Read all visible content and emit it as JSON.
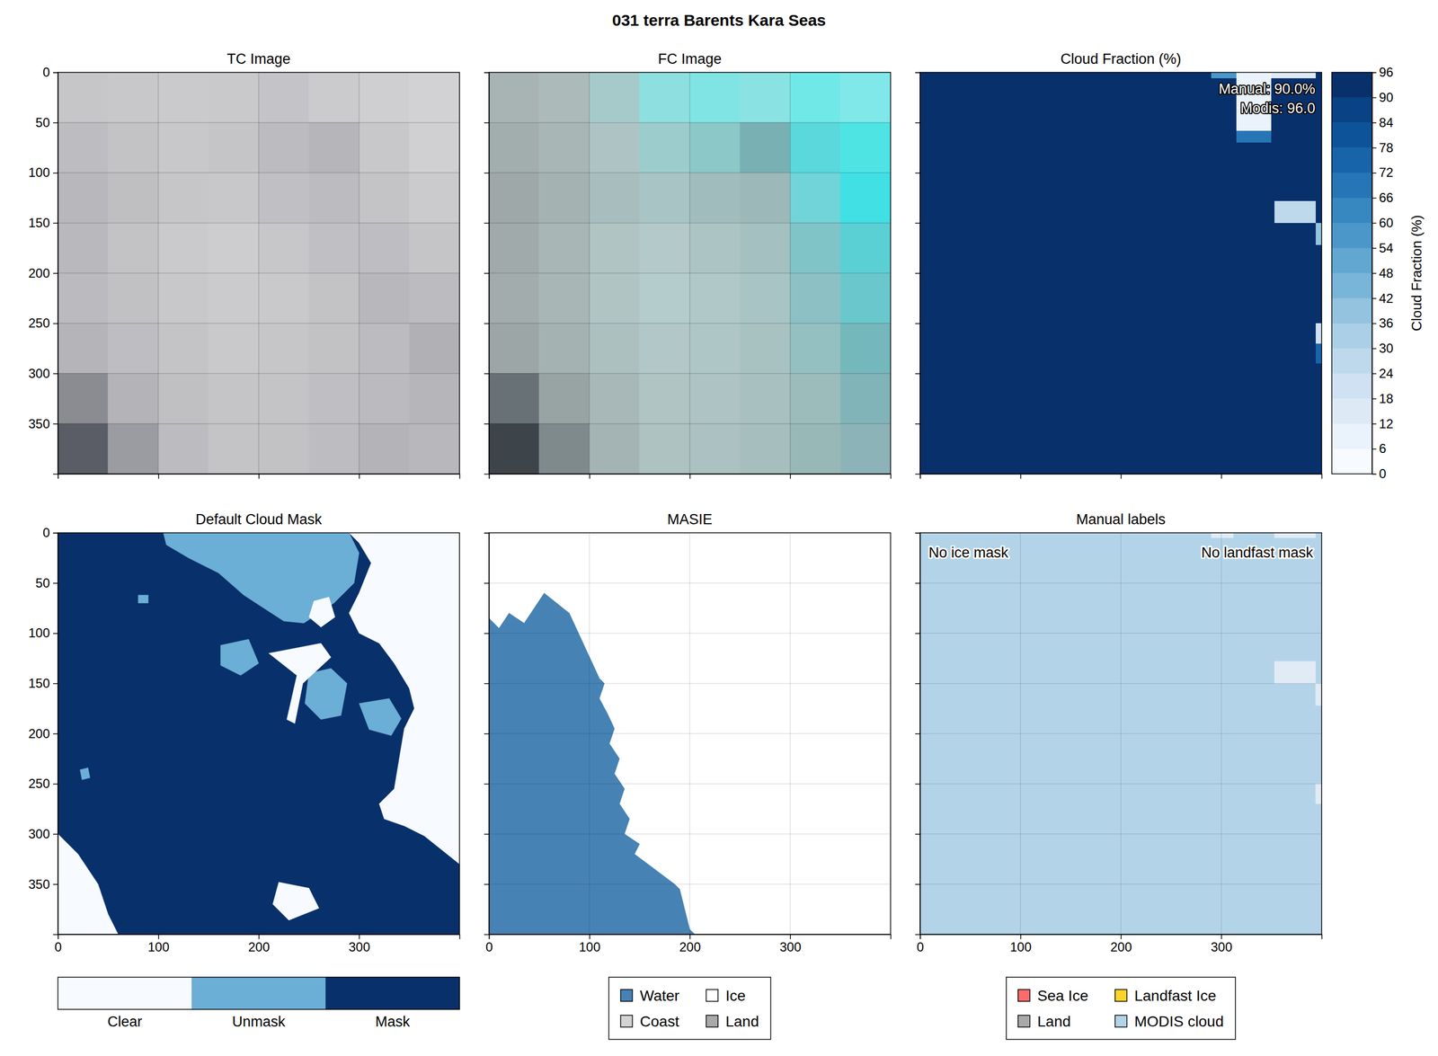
{
  "title": "031 terra Barents Kara Seas",
  "chart_data": [
    {
      "type": "image",
      "title": "TC Image",
      "xlim": [
        0,
        400
      ],
      "ylim": [
        400,
        0
      ],
      "xticks": [
        0,
        100,
        200,
        300
      ],
      "yticks": [
        0,
        50,
        100,
        150,
        200,
        250,
        300,
        350
      ],
      "grid": true,
      "tick_labels": "y",
      "cells": [
        [
          "#c6c6c8",
          "#c8c8ca",
          "#cacacc",
          "#c9c9cb",
          "#c4c4c8",
          "#cbcbcd",
          "#cfcfd1",
          "#d2d2d4"
        ],
        [
          "#bdbdc1",
          "#c3c3c6",
          "#c8c8ca",
          "#c5c5c8",
          "#bcbcc0",
          "#b6b6ba",
          "#c8c8cb",
          "#d0d0d2"
        ],
        [
          "#b8b8bc",
          "#bfbfc2",
          "#c6c6c9",
          "#c8c8ca",
          "#c0c0c4",
          "#bcbcc0",
          "#c4c4c7",
          "#cbcbce"
        ],
        [
          "#b9b9bd",
          "#c3c3c6",
          "#cacacc",
          "#cdcdcf",
          "#c7c7ca",
          "#c0c0c4",
          "#bebec2",
          "#c5c5c8"
        ],
        [
          "#bbbbbf",
          "#c1c1c4",
          "#c8c8cb",
          "#cbcbcd",
          "#c9c9cc",
          "#c3c3c6",
          "#b8b8bc",
          "#bcbcc0"
        ],
        [
          "#b5b5b9",
          "#bebec2",
          "#c4c4c7",
          "#c9c9cb",
          "#c6c6c9",
          "#c2c2c5",
          "#bcbcc0",
          "#b0b0b5"
        ],
        [
          "#8a8c92",
          "#b4b4b8",
          "#c0c0c3",
          "#c5c5c8",
          "#c4c4c7",
          "#bfbfc3",
          "#bbbbbf",
          "#b6b6ba"
        ],
        [
          "#5a5d65",
          "#9a9ca2",
          "#bcbcc0",
          "#c4c4c7",
          "#c2c2c5",
          "#bdbdc1",
          "#b4b4b8",
          "#b8b8bc"
        ]
      ]
    },
    {
      "type": "image",
      "title": "FC Image",
      "xlim": [
        0,
        400
      ],
      "ylim": [
        400,
        0
      ],
      "xticks": [
        0,
        100,
        200,
        300
      ],
      "yticks": [
        0,
        50,
        100,
        150,
        200,
        250,
        300,
        350
      ],
      "grid": true,
      "tick_labels": false,
      "cells": [
        [
          "#a8b4b4",
          "#acbaba",
          "#a6caca",
          "#8ee0e0",
          "#80e4e4",
          "#8ae2e2",
          "#70e8e8",
          "#80e8e8"
        ],
        [
          "#a2aeae",
          "#a8b6b6",
          "#aec4c4",
          "#9ccccc",
          "#8cc8c8",
          "#78b0b4",
          "#5ad8dc",
          "#4ee4e4"
        ],
        [
          "#9ea8a8",
          "#a4b2b2",
          "#a8bebe",
          "#a8c4c4",
          "#a0bcbc",
          "#9cb8b8",
          "#70d4d8",
          "#40e0e4"
        ],
        [
          "#a0aaaa",
          "#a8b6b6",
          "#b0c4c4",
          "#b4caca",
          "#acc4c4",
          "#a4c0c0",
          "#80c4c8",
          "#5ad0d4"
        ],
        [
          "#a2acac",
          "#a8b6b6",
          "#b0c4c4",
          "#b4cccc",
          "#b0c8c8",
          "#a8c4c4",
          "#8cc0c4",
          "#6ac8cc"
        ],
        [
          "#9ca6a6",
          "#a4b2b2",
          "#acc0c0",
          "#b2c8c8",
          "#aec6c6",
          "#a8c2c2",
          "#94c0c2",
          "#74b8bc"
        ],
        [
          "#687276",
          "#98a4a4",
          "#a8b8b8",
          "#b0c4c4",
          "#aec4c4",
          "#a8c0c0",
          "#9cbcbc",
          "#80b4b8"
        ],
        [
          "#3e454a",
          "#7e8a8c",
          "#a4b4b4",
          "#aec2c2",
          "#acc2c2",
          "#a6bebe",
          "#98b8b8",
          "#8cb4b8"
        ]
      ]
    },
    {
      "type": "heatmap",
      "title": "Cloud Fraction (%)",
      "xlim": [
        0,
        400
      ],
      "ylim": [
        400,
        0
      ],
      "xticks": [
        0,
        100,
        200,
        300
      ],
      "yticks": [
        0,
        50,
        100,
        150,
        200,
        250,
        300,
        350
      ],
      "grid": false,
      "tick_labels": false,
      "annotations": [
        "Manual: 90.0%",
        "Modis: 96.0"
      ],
      "cells": [
        {
          "x": [
            0,
            400
          ],
          "y": [
            0,
            400
          ],
          "value": 96
        },
        {
          "x": [
            290,
            315
          ],
          "y": [
            0,
            6
          ],
          "value": 54
        },
        {
          "x": [
            315,
            350
          ],
          "y": [
            0,
            58
          ],
          "value": 6
        },
        {
          "x": [
            315,
            350
          ],
          "y": [
            58,
            70
          ],
          "value": 66
        },
        {
          "x": [
            350,
            394
          ],
          "y": [
            0,
            6
          ],
          "value": 12
        },
        {
          "x": [
            353,
            394
          ],
          "y": [
            128,
            150
          ],
          "value": 24
        },
        {
          "x": [
            394,
            400
          ],
          "y": [
            150,
            172
          ],
          "value": 36
        },
        {
          "x": [
            394,
            400
          ],
          "y": [
            250,
            270
          ],
          "value": 18
        },
        {
          "x": [
            394,
            400
          ],
          "y": [
            270,
            290
          ],
          "value": 72
        }
      ],
      "colorbar": {
        "label": "Cloud Fraction (%)",
        "lim": [
          0,
          96
        ],
        "ticks": [
          0,
          6,
          12,
          18,
          24,
          30,
          36,
          42,
          48,
          54,
          60,
          66,
          72,
          78,
          84,
          90,
          96
        ]
      }
    },
    {
      "type": "categorical_map",
      "title": "Default Cloud Mask",
      "xlim": [
        0,
        400
      ],
      "ylim": [
        400,
        0
      ],
      "xticks": [
        0,
        100,
        200,
        300
      ],
      "yticks": [
        0,
        50,
        100,
        150,
        200,
        250,
        300,
        350
      ],
      "grid": false,
      "tick_labels": true,
      "legend": "bottom",
      "colorbar": {
        "labels": [
          "Clear",
          "Unmask",
          "Mask"
        ],
        "colors": [
          "#f7fbff",
          "#6baed6",
          "#08306b"
        ]
      },
      "regions": [
        {
          "category": 2,
          "polygon": [
            [
              0,
              0
            ],
            [
              400,
              0
            ],
            [
              400,
              400
            ],
            [
              0,
              400
            ]
          ]
        },
        {
          "category": 1,
          "polygon": [
            [
              105,
              0
            ],
            [
              290,
              0
            ],
            [
              300,
              20
            ],
            [
              295,
              50
            ],
            [
              275,
              70
            ],
            [
              245,
              90
            ],
            [
              225,
              88
            ],
            [
              205,
              75
            ],
            [
              185,
              62
            ],
            [
              160,
              40
            ],
            [
              130,
              25
            ],
            [
              108,
              12
            ]
          ]
        },
        {
          "category": 0,
          "polygon": [
            [
              290,
              0
            ],
            [
              400,
              0
            ],
            [
              400,
              330
            ],
            [
              385,
              318
            ],
            [
              365,
              302
            ],
            [
              345,
              292
            ],
            [
              325,
              285
            ],
            [
              320,
              270
            ],
            [
              335,
              255
            ],
            [
              340,
              225
            ],
            [
              345,
              195
            ],
            [
              355,
              175
            ],
            [
              350,
              155
            ],
            [
              335,
              130
            ],
            [
              320,
              110
            ],
            [
              300,
              100
            ],
            [
              290,
              80
            ],
            [
              300,
              60
            ],
            [
              312,
              30
            ],
            [
              300,
              10
            ]
          ]
        },
        {
          "category": 1,
          "polygon": [
            [
              250,
              140
            ],
            [
              272,
              135
            ],
            [
              288,
              150
            ],
            [
              282,
              182
            ],
            [
              262,
              186
            ],
            [
              246,
              170
            ]
          ]
        },
        {
          "category": 1,
          "polygon": [
            [
              300,
              170
            ],
            [
              330,
              165
            ],
            [
              342,
              185
            ],
            [
              332,
              202
            ],
            [
              310,
              196
            ]
          ]
        },
        {
          "category": 1,
          "polygon": [
            [
              162,
              112
            ],
            [
              190,
              106
            ],
            [
              200,
              130
            ],
            [
              182,
              142
            ],
            [
              162,
              132
            ]
          ]
        },
        {
          "category": 1,
          "polygon": [
            [
              22,
              236
            ],
            [
              30,
              234
            ],
            [
              32,
              244
            ],
            [
              24,
              246
            ]
          ]
        },
        {
          "category": 1,
          "polygon": [
            [
              80,
              62
            ],
            [
              90,
              62
            ],
            [
              90,
              70
            ],
            [
              80,
              70
            ]
          ]
        },
        {
          "category": 0,
          "polygon": [
            [
              210,
              120
            ],
            [
              262,
              110
            ],
            [
              272,
              124
            ],
            [
              244,
              150
            ],
            [
              236,
              190
            ],
            [
              228,
              186
            ],
            [
              238,
              142
            ]
          ]
        },
        {
          "category": 0,
          "polygon": [
            [
              255,
              68
            ],
            [
              270,
              64
            ],
            [
              276,
              84
            ],
            [
              262,
              94
            ],
            [
              250,
              84
            ]
          ]
        },
        {
          "category": 0,
          "polygon": [
            [
              0,
              300
            ],
            [
              20,
              320
            ],
            [
              40,
              350
            ],
            [
              50,
              380
            ],
            [
              60,
              400
            ],
            [
              0,
              400
            ]
          ]
        },
        {
          "category": 0,
          "polygon": [
            [
              220,
              348
            ],
            [
              250,
              354
            ],
            [
              260,
              374
            ],
            [
              230,
              386
            ],
            [
              214,
              370
            ]
          ]
        }
      ]
    },
    {
      "type": "categorical_map",
      "title": "MASIE",
      "xlim": [
        0,
        400
      ],
      "ylim": [
        400,
        0
      ],
      "xticks": [
        0,
        100,
        200,
        300
      ],
      "yticks": [
        0,
        50,
        100,
        150,
        200,
        250,
        300,
        350
      ],
      "grid": true,
      "tick_labels": "x",
      "legend": "bottom",
      "categories": [
        "Water",
        "Ice",
        "Coast",
        "Land"
      ],
      "colors": [
        "#4682b4",
        "#ffffff",
        "#d3d3d3",
        "#a9a9a9"
      ],
      "regions": [
        {
          "category": 1,
          "polygon": [
            [
              0,
              0
            ],
            [
              400,
              0
            ],
            [
              400,
              400
            ],
            [
              0,
              400
            ]
          ]
        },
        {
          "category": 0,
          "polygon": [
            [
              0,
              85
            ],
            [
              10,
              95
            ],
            [
              20,
              80
            ],
            [
              35,
              90
            ],
            [
              55,
              60
            ],
            [
              80,
              80
            ],
            [
              110,
              145
            ],
            [
              115,
              150
            ],
            [
              110,
              165
            ],
            [
              118,
              180
            ],
            [
              125,
              195
            ],
            [
              120,
              210
            ],
            [
              130,
              225
            ],
            [
              125,
              240
            ],
            [
              135,
              255
            ],
            [
              130,
              270
            ],
            [
              140,
              285
            ],
            [
              135,
              300
            ],
            [
              150,
              310
            ],
            [
              145,
              320
            ],
            [
              185,
              350
            ],
            [
              190,
              355
            ],
            [
              200,
              395
            ],
            [
              205,
              400
            ],
            [
              0,
              400
            ]
          ]
        }
      ]
    },
    {
      "type": "categorical_map",
      "title": "Manual labels",
      "xlim": [
        0,
        400
      ],
      "ylim": [
        400,
        0
      ],
      "xticks": [
        0,
        100,
        200,
        300
      ],
      "yticks": [
        0,
        50,
        100,
        150,
        200,
        250,
        300,
        350
      ],
      "grid": true,
      "tick_labels": "x",
      "legend": "bottom",
      "annotations": [
        "No ice mask",
        "No landfast mask"
      ],
      "categories": [
        "Sea Ice",
        "Landfast Ice",
        "Land",
        "MODIS cloud"
      ],
      "colors": [
        "#ff6b6b",
        "#ffd42a",
        "#a9a9a9",
        "#b3d4e8"
      ],
      "regions": [
        {
          "category": 3,
          "polygon": [
            [
              0,
              0
            ],
            [
              400,
              0
            ],
            [
              400,
              400
            ],
            [
              0,
              400
            ]
          ]
        },
        {
          "category": null,
          "polygon": [
            [
              290,
              0
            ],
            [
              312,
              0
            ],
            [
              312,
              5
            ],
            [
              290,
              5
            ]
          ]
        },
        {
          "category": null,
          "polygon": [
            [
              353,
              0
            ],
            [
              394,
              0
            ],
            [
              394,
              5
            ],
            [
              353,
              5
            ]
          ]
        },
        {
          "category": null,
          "polygon": [
            [
              353,
              128
            ],
            [
              394,
              128
            ],
            [
              394,
              150
            ],
            [
              353,
              150
            ]
          ]
        },
        {
          "category": null,
          "polygon": [
            [
              394,
              150
            ],
            [
              400,
              150
            ],
            [
              400,
              172
            ],
            [
              394,
              172
            ]
          ]
        },
        {
          "category": null,
          "polygon": [
            [
              394,
              250
            ],
            [
              400,
              250
            ],
            [
              400,
              270
            ],
            [
              394,
              270
            ]
          ]
        }
      ]
    }
  ]
}
